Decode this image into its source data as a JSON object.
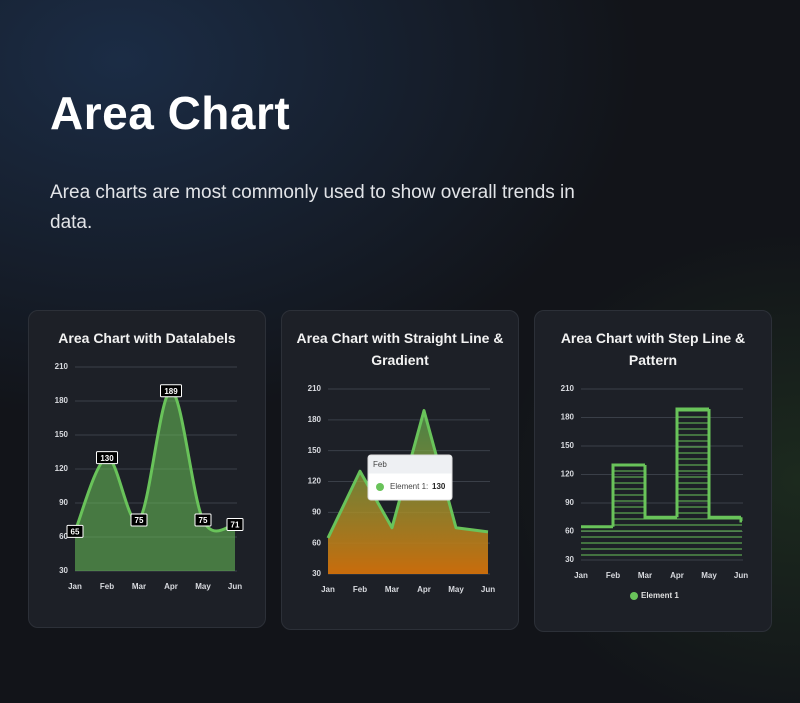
{
  "page": {
    "title": "Area Chart",
    "description": "Area charts are most commonly used to show overall trends in data."
  },
  "chart_data": [
    {
      "type": "area",
      "title": "Area Chart with Datalabels",
      "curve": "smooth",
      "fill": "solid",
      "categories": [
        "Jan",
        "Feb",
        "Mar",
        "Apr",
        "May",
        "Jun"
      ],
      "values": [
        65,
        130,
        75,
        189,
        75,
        71
      ],
      "color": "#69c35a",
      "data_labels": true,
      "ylim": [
        30,
        210
      ],
      "yticks": [
        30,
        60,
        90,
        120,
        150,
        180,
        210
      ],
      "grid": true
    },
    {
      "type": "area",
      "title": "Area Chart with Straight Line & Gradient",
      "curve": "straight",
      "fill": "gradient",
      "categories": [
        "Jan",
        "Feb",
        "Mar",
        "Apr",
        "May",
        "Jun"
      ],
      "values": [
        65,
        130,
        75,
        189,
        75,
        71
      ],
      "color": "#69c35a",
      "gradient_color": "#d2700a",
      "ylim": [
        30,
        210
      ],
      "yticks": [
        30,
        60,
        90,
        120,
        150,
        180,
        210
      ],
      "grid": true,
      "tooltip": {
        "title": "Feb",
        "label": "Element 1:",
        "value": 130
      }
    },
    {
      "type": "area",
      "title": "Area Chart with Step Line & Pattern",
      "curve": "step",
      "fill": "pattern",
      "categories": [
        "Jan",
        "Feb",
        "Mar",
        "Apr",
        "May",
        "Jun"
      ],
      "series": [
        {
          "name": "Element 1",
          "color": "#69c35a",
          "values": [
            65,
            130,
            75,
            189,
            75,
            71
          ]
        }
      ],
      "legend": "bottom",
      "ylim": [
        30,
        210
      ],
      "yticks": [
        30,
        60,
        90,
        120,
        150,
        180,
        210
      ],
      "grid": true
    }
  ]
}
